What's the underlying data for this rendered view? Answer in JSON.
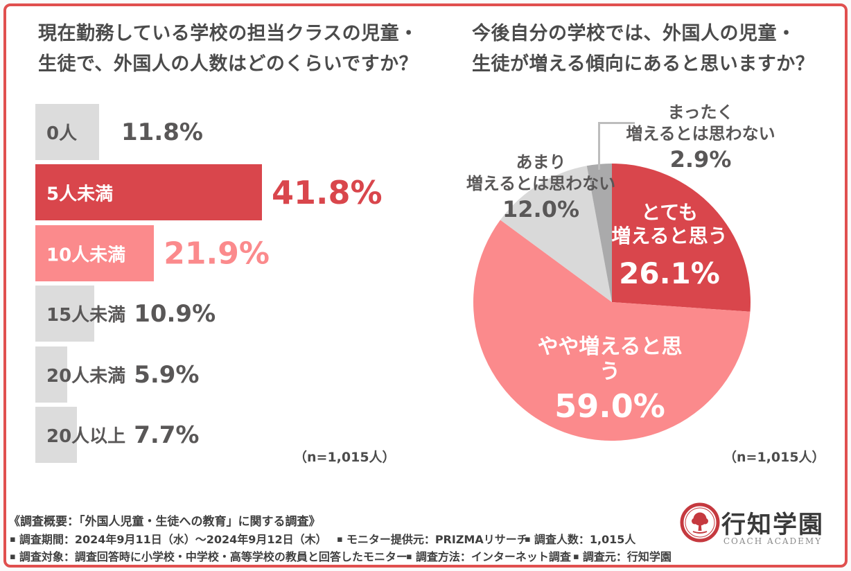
{
  "chart_data": [
    {
      "type": "bar",
      "orientation": "horizontal",
      "title": "現在勤務している学校の担当クラスの児童・\n生徒で、外国人の人数はどのくらいですか？",
      "n_label": "（n=1,015人）",
      "categories": [
        "0人",
        "5人未満",
        "10人未満",
        "15人未満",
        "20人未満",
        "20人以上"
      ],
      "values": [
        11.8,
        41.8,
        21.9,
        10.9,
        5.9,
        7.7
      ],
      "rows": [
        {
          "label": "0人",
          "value": 11.8,
          "pct_text": "11.8%",
          "bar_color": "#dcdcdc",
          "pct_color": "#595757",
          "pct_class": "pct-gray",
          "label_inside": false
        },
        {
          "label": "5人未満",
          "value": 41.8,
          "pct_text": "41.8%",
          "bar_color": "#d9464c",
          "pct_color": "#d9464c",
          "pct_class": "pct-red",
          "label_inside": true
        },
        {
          "label": "10人未満",
          "value": 21.9,
          "pct_text": "21.9%",
          "bar_color": "#fb8a8c",
          "pct_color": "#fb8a8c",
          "pct_class": "pct-pink",
          "label_inside": true
        },
        {
          "label": "15人未満",
          "value": 10.9,
          "pct_text": "10.9%",
          "bar_color": "#dcdcdc",
          "pct_color": "#595757",
          "pct_class": "pct-gray",
          "label_inside": false
        },
        {
          "label": "20人未満",
          "value": 5.9,
          "pct_text": "5.9%",
          "bar_color": "#dcdcdc",
          "pct_color": "#595757",
          "pct_class": "pct-gray",
          "label_inside": false
        },
        {
          "label": "20人以上",
          "value": 7.7,
          "pct_text": "7.7%",
          "bar_color": "#dcdcdc",
          "pct_color": "#595757",
          "pct_class": "pct-gray",
          "label_inside": false
        }
      ]
    },
    {
      "type": "pie",
      "start_angle": "12-oclock",
      "direction": "clockwise",
      "title": "今後自分の学校では、外国人の児童・\n生徒が増える傾向にあると思いますか？",
      "n_label": "（n=1,015人）",
      "labels": [
        "とても増えると思う",
        "やや増えると思う",
        "あまり増えるとは思わない",
        "まったく増えるとは思わない"
      ],
      "values": [
        26.1,
        59.0,
        12.0,
        2.9
      ],
      "slices": [
        {
          "label": "とても増えると思う",
          "value": 26.1,
          "pct_text": "26.1%",
          "color": "#d9464c",
          "label_lines": "とても\n増えると思う",
          "label_color": "#ffffff"
        },
        {
          "label": "やや増えると思う",
          "value": 59.0,
          "pct_text": "59.0%",
          "color": "#fb8a8c",
          "label_lines": "やや増えると思う",
          "label_color": "#ffffff"
        },
        {
          "label": "あまり増えるとは思わない",
          "value": 12.0,
          "pct_text": "12.0%",
          "color": "#d9d9d9",
          "label_lines": "あまり\n増えるとは思わない",
          "label_color": "#595757"
        },
        {
          "label": "まったく増えるとは思わない",
          "value": 2.9,
          "pct_text": "2.9%",
          "color": "#aaaaab",
          "label_lines": "まったく\n増えるとは思わない",
          "label_color": "#595757"
        }
      ]
    }
  ],
  "footer": {
    "heading": "《調査概要：「外国人児童・生徒への教育」に関する調査》",
    "bullet": "▪",
    "items": [
      {
        "text": "調査期間：2024年9月11日（水）〜2024年9月12日（木）"
      },
      {
        "text": "モニター提供元：PRIZMAリサーチ"
      },
      {
        "text": "調査人数：1,015人"
      },
      {
        "text": "調査対象：調査回答時に小学校・中学校・高等学校の教員と回答したモニター"
      },
      {
        "text": "調査方法：インターネット調査"
      },
      {
        "text": "調査元：行知学園"
      }
    ]
  },
  "logo": {
    "name": "行知学園",
    "subtitle": "COACH ACADEMY",
    "seal_color": "#c5393f"
  },
  "colors": {
    "accent_red": "#d9464c",
    "accent_pink": "#fb8a8c",
    "bar_gray": "#dcdcdc",
    "pie_gray": "#d9d9d9",
    "pie_dark_gray": "#aaaaab",
    "text_dark": "#595757",
    "border_red": "#e0504f"
  }
}
